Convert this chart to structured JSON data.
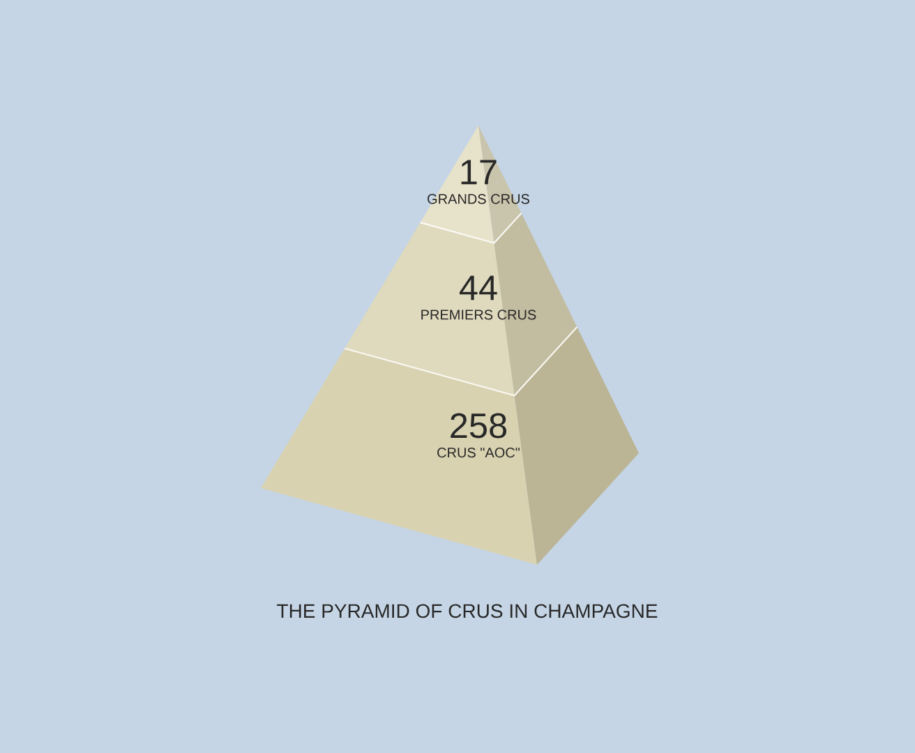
{
  "chart_data": {
    "type": "other",
    "title": "THE PYRAMID OF CRUS IN CHAMPAGNE",
    "categories": [
      "GRANDS CRUS",
      "PREMIERS CRUS",
      "CRUS \"AOC\""
    ],
    "values": [
      17,
      44,
      258
    ],
    "colors": [
      "#e4dfc4",
      "#dcd6b6",
      "#d4cda9"
    ],
    "data_labels": true
  }
}
